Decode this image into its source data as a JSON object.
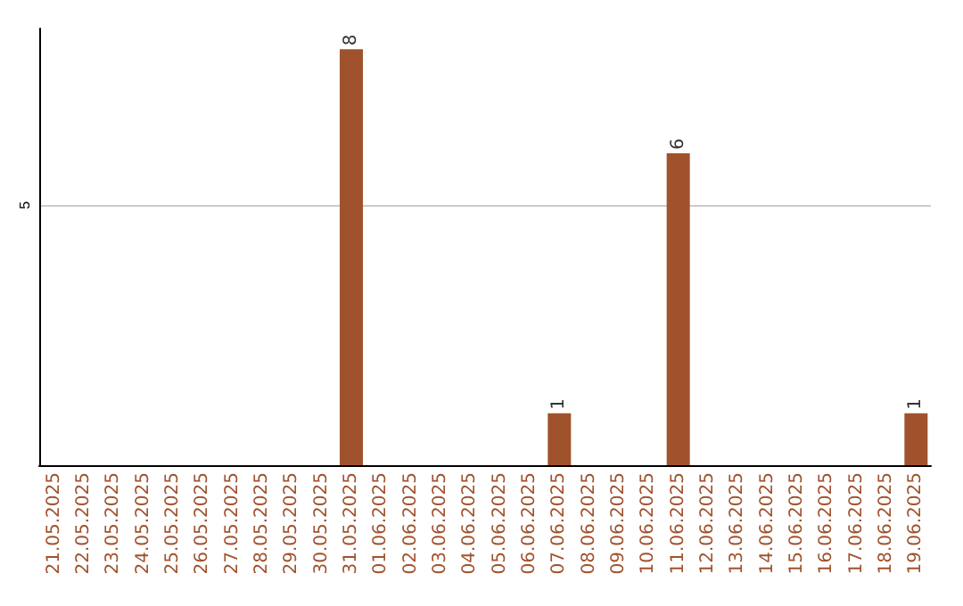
{
  "chart_data": {
    "type": "bar",
    "categories": [
      "21.05.2025",
      "22.05.2025",
      "23.05.2025",
      "24.05.2025",
      "25.05.2025",
      "26.05.2025",
      "27.05.2025",
      "28.05.2025",
      "29.05.2025",
      "30.05.2025",
      "31.05.2025",
      "01.06.2025",
      "02.06.2025",
      "03.06.2025",
      "04.06.2025",
      "05.06.2025",
      "06.06.2025",
      "07.06.2025",
      "08.06.2025",
      "09.06.2025",
      "10.06.2025",
      "11.06.2025",
      "12.06.2025",
      "13.06.2025",
      "14.06.2025",
      "15.06.2025",
      "16.06.2025",
      "17.06.2025",
      "18.06.2025",
      "19.06.2025"
    ],
    "values": [
      0,
      0,
      0,
      0,
      0,
      0,
      0,
      0,
      0,
      0,
      8,
      0,
      0,
      0,
      0,
      0,
      0,
      1,
      0,
      0,
      0,
      6,
      0,
      0,
      0,
      0,
      0,
      0,
      0,
      1
    ],
    "value_labels": [
      null,
      null,
      null,
      null,
      null,
      null,
      null,
      null,
      null,
      null,
      "8",
      null,
      null,
      null,
      null,
      null,
      null,
      "1",
      null,
      null,
      null,
      "6",
      null,
      null,
      null,
      null,
      null,
      null,
      null,
      "1"
    ],
    "color": "#a0522d",
    "ylim": [
      0,
      8.4
    ],
    "yticks": [
      5
    ],
    "grid": "y"
  }
}
